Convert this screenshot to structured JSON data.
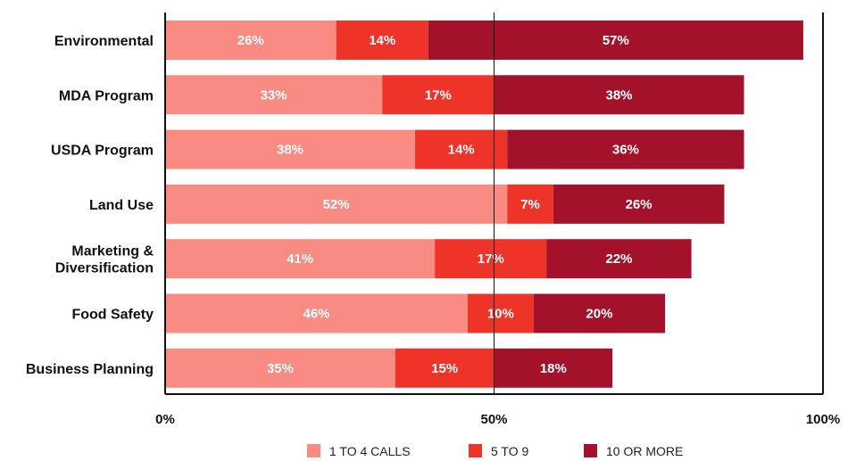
{
  "chart_data": {
    "type": "bar",
    "orientation": "horizontal",
    "stacked": true,
    "categories": [
      "Environmental",
      "MDA Program",
      "USDA Program",
      "Land Use",
      "Marketing & Diversification",
      "Food Safety",
      "Business Planning"
    ],
    "category_lines": [
      [
        "Environmental"
      ],
      [
        "MDA Program"
      ],
      [
        "USDA Program"
      ],
      [
        "Land Use"
      ],
      [
        "Marketing &",
        "Diversification"
      ],
      [
        "Food Safety"
      ],
      [
        "Business Planning"
      ]
    ],
    "series": [
      {
        "name": "1 TO 4 CALLS",
        "color": "#f98b82",
        "values": [
          26,
          33,
          38,
          52,
          41,
          46,
          35
        ]
      },
      {
        "name": "5 TO 9",
        "color": "#ee3329",
        "values": [
          14,
          17,
          14,
          7,
          17,
          10,
          15
        ]
      },
      {
        "name": "10 OR MORE",
        "color": "#a3122a",
        "values": [
          57,
          38,
          36,
          26,
          22,
          20,
          18
        ]
      }
    ],
    "value_suffix": "%",
    "xlim": [
      0,
      100
    ],
    "xticks": [
      0,
      50,
      100
    ],
    "xtick_labels": [
      "0%",
      "50%",
      "100%"
    ],
    "title": "",
    "xlabel": "",
    "ylabel": "",
    "grid": false,
    "legend_position": "bottom"
  }
}
